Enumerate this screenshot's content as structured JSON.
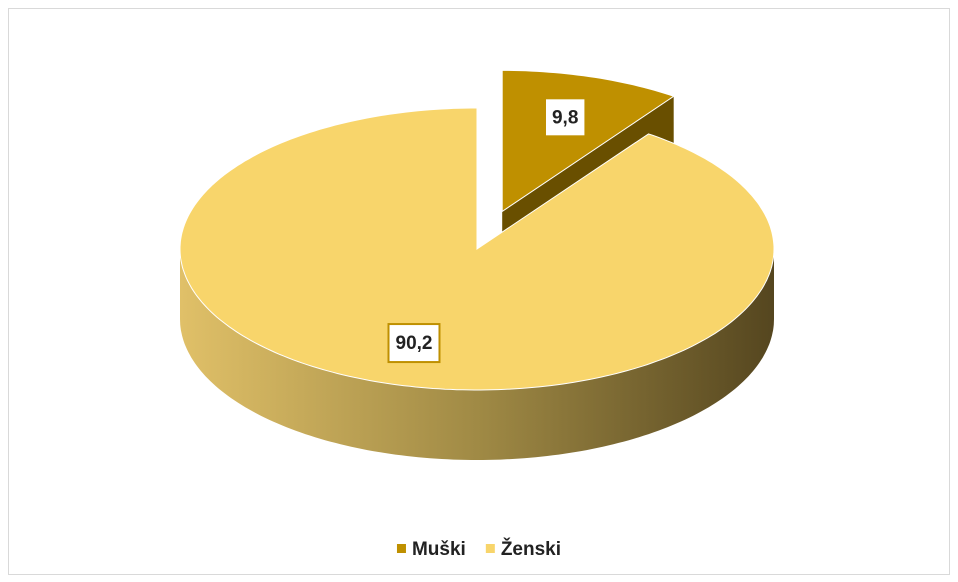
{
  "chart_data": {
    "type": "pie",
    "categories": [
      "Muški",
      "Ženski"
    ],
    "values": [
      9.8,
      90.2
    ],
    "value_labels": [
      "9,8",
      "90,2"
    ],
    "colors": [
      "#bf9000",
      "#f8d56b"
    ],
    "legend": "bottom"
  }
}
